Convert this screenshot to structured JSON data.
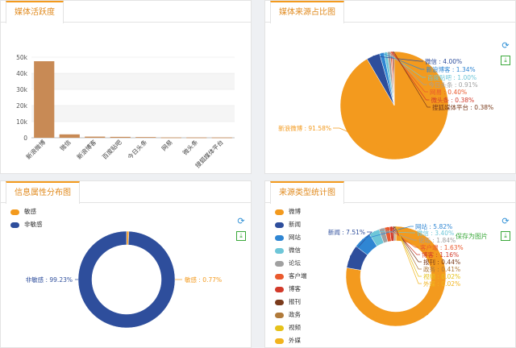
{
  "panels": {
    "activity": {
      "title": "媒体活跃度"
    },
    "source": {
      "title": "媒体来源占比图"
    },
    "attr": {
      "title": "信息属性分布图"
    },
    "type": {
      "title": "来源类型统计图",
      "save_tip": "保存为图片"
    }
  },
  "icons": {
    "refresh": "refresh-icon",
    "save": "save-image-icon"
  },
  "chart_data": [
    {
      "type": "bar",
      "title": "媒体活跃度",
      "categories": [
        "新浪微博",
        "微信",
        "新浪博客",
        "百度贴吧",
        "今日头条",
        "网易",
        "微头条",
        "搜狐媒体平台"
      ],
      "values": [
        47500,
        2100,
        700,
        560,
        420,
        200,
        190,
        180
      ],
      "ylim": [
        0,
        50000
      ],
      "ytick_labels": [
        "0",
        "10k",
        "20k",
        "30k",
        "40k",
        "50k"
      ],
      "grid": true,
      "bar_color": "#c88a55"
    },
    {
      "type": "pie",
      "title": "媒体来源占比图",
      "slices": [
        {
          "label": "新浪微博",
          "value": 91.58,
          "text": "新浪微博 : 91.58%",
          "color": "#f39a1e"
        },
        {
          "label": "微信",
          "value": 4.0,
          "text": "微信 : 4.00%",
          "color": "#2e4e9c"
        },
        {
          "label": "新浪博客",
          "value": 1.34,
          "text": "新浪博客 : 1.34%",
          "color": "#2f86d3"
        },
        {
          "label": "百度贴吧",
          "value": 1.0,
          "text": "百度贴吧 : 1.00%",
          "color": "#6ec6d8"
        },
        {
          "label": "今日头条",
          "value": 0.91,
          "text": "今日头条 : 0.91%",
          "color": "#a0a0a0"
        },
        {
          "label": "网易",
          "value": 0.4,
          "text": "网易 : 0.40%",
          "color": "#ea5a2e"
        },
        {
          "label": "微头条",
          "value": 0.38,
          "text": "微头条 : 0.38%",
          "color": "#d23a2a"
        },
        {
          "label": "搜狐媒体平台",
          "value": 0.38,
          "text": "搜狐媒体平台 : 0.38%",
          "color": "#7a3b1c"
        }
      ]
    },
    {
      "type": "pie",
      "title": "信息属性分布图",
      "donut": true,
      "legend": [
        "敏感",
        "非敏感"
      ],
      "slices": [
        {
          "label": "敏感",
          "value": 0.77,
          "text": "敏感 : 0.77%",
          "color": "#f39a1e"
        },
        {
          "label": "非敏感",
          "value": 99.23,
          "text": "非敏感 : 99.23%",
          "color": "#2e4e9c"
        }
      ]
    },
    {
      "type": "pie",
      "title": "来源类型统计图",
      "donut": true,
      "legend": [
        "微博",
        "新闻",
        "网站",
        "微信",
        "论坛",
        "客户端",
        "博客",
        "报刊",
        "政务",
        "视频",
        "外媒"
      ],
      "slices": [
        {
          "label": "微博",
          "value": 77.76,
          "text": "微博 : 77.76%",
          "color": "#f39a1e"
        },
        {
          "label": "新闻",
          "value": 7.51,
          "text": "新闻 : 7.51%",
          "color": "#2e4e9c"
        },
        {
          "label": "网站",
          "value": 5.82,
          "text": "网站 : 5.82%",
          "color": "#2f86d3"
        },
        {
          "label": "微信",
          "value": 3.4,
          "text": "微信 : 3.40%",
          "color": "#6ec6d8"
        },
        {
          "label": "论坛",
          "value": 1.84,
          "text": "论坛 : 1.84%",
          "color": "#a0a0a0"
        },
        {
          "label": "客户端",
          "value": 1.63,
          "text": "客户端 : 1.63%",
          "color": "#ea5a2e"
        },
        {
          "label": "博客",
          "value": 1.16,
          "text": "博客 : 1.16%",
          "color": "#d23a2a"
        },
        {
          "label": "报刊",
          "value": 0.44,
          "text": "报刊 : 0.44%",
          "color": "#7a3b1c"
        },
        {
          "label": "政务",
          "value": 0.41,
          "text": "政务 : 0.41%",
          "color": "#b07a3a"
        },
        {
          "label": "视频",
          "value": 0.02,
          "text": "视频 : 0.02%",
          "color": "#e6c21a"
        },
        {
          "label": "外媒",
          "value": 0.02,
          "text": "外媒 : 0.02%",
          "color": "#f2b41e"
        }
      ]
    }
  ]
}
